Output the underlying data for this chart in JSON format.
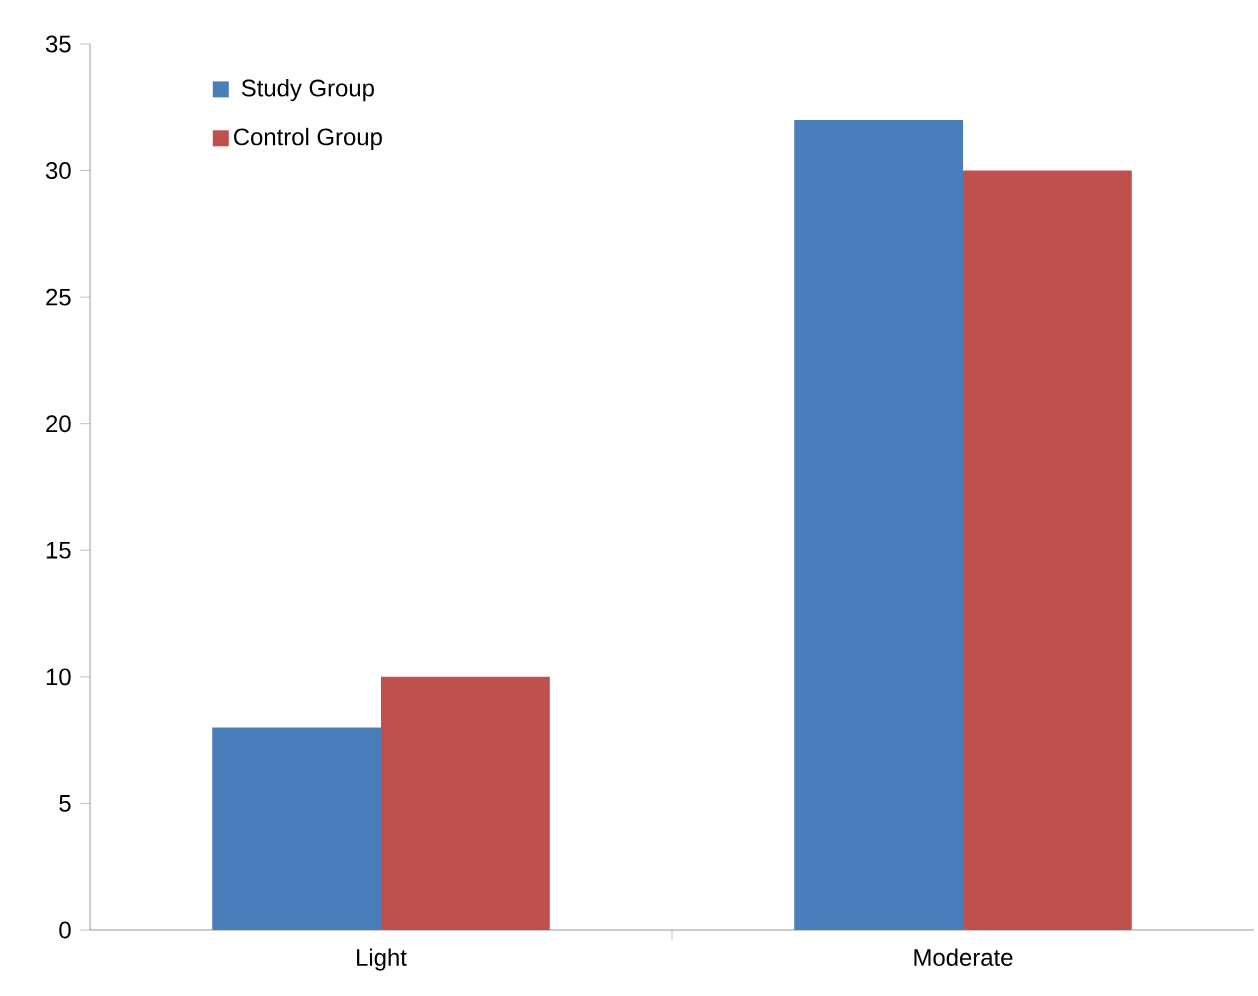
{
  "chart_data": {
    "type": "bar",
    "categories": [
      "Light",
      "Moderate"
    ],
    "series": [
      {
        "name": "Study Group",
        "color": "#4a7ebb",
        "values": [
          8,
          32
        ]
      },
      {
        "name": "Control Group",
        "color": "#c0504d",
        "values": [
          10,
          30
        ]
      }
    ],
    "ylim": [
      0,
      35
    ],
    "yticks": [
      0,
      5,
      10,
      15,
      20,
      25,
      30,
      35
    ],
    "legend": "top left",
    "grid": false
  }
}
